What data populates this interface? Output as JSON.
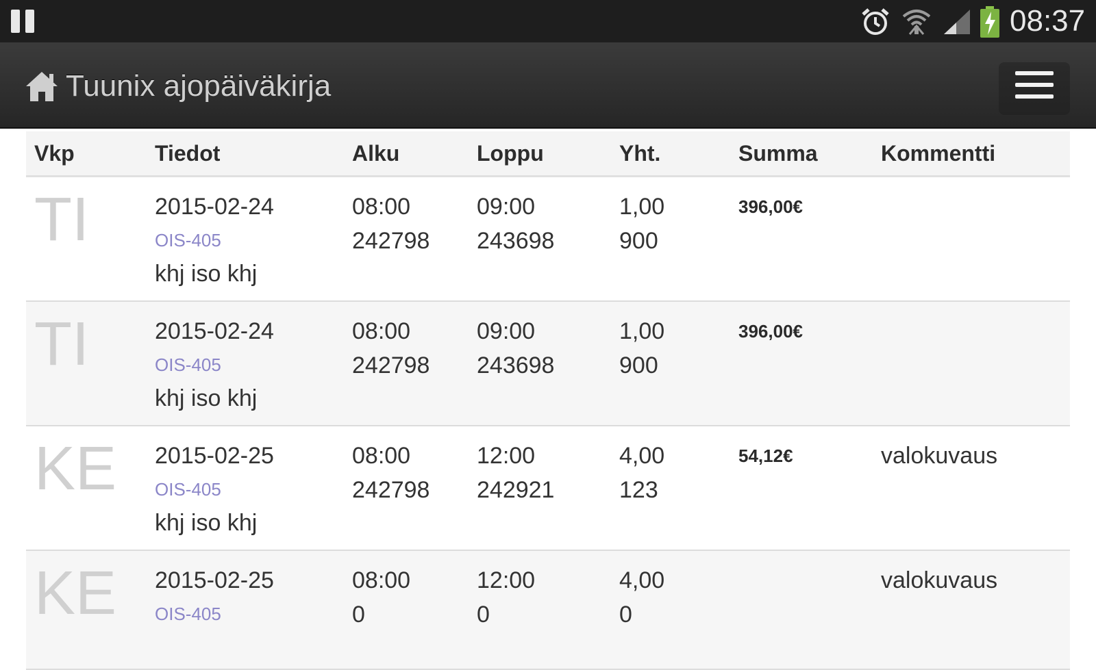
{
  "status_bar": {
    "time": "08:37",
    "icons": [
      "pause-icon",
      "alarm-icon",
      "wifi-icon",
      "signal-icon",
      "battery-charging-icon"
    ]
  },
  "header": {
    "title": "Tuunix ajopäiväkirja",
    "home_icon": "home-icon",
    "menu_icon": "hamburger-menu-icon"
  },
  "table": {
    "columns": [
      "Vkp",
      "Tiedot",
      "Alku",
      "Loppu",
      "Yht.",
      "Summa",
      "Kommentti"
    ],
    "rows": [
      {
        "day": "TI",
        "date": "2015-02-24",
        "plate": "OIS-405",
        "description": "khj iso khj",
        "start_time": "08:00",
        "start_km": "242798",
        "end_time": "09:00",
        "end_km": "243698",
        "total_hours": "1,00",
        "total_km": "900",
        "sum": "396,00€",
        "comment": ""
      },
      {
        "day": "TI",
        "date": "2015-02-24",
        "plate": "OIS-405",
        "description": "khj iso khj",
        "start_time": "08:00",
        "start_km": "242798",
        "end_time": "09:00",
        "end_km": "243698",
        "total_hours": "1,00",
        "total_km": "900",
        "sum": "396,00€",
        "comment": ""
      },
      {
        "day": "KE",
        "date": "2015-02-25",
        "plate": "OIS-405",
        "description": "khj iso khj",
        "start_time": "08:00",
        "start_km": "242798",
        "end_time": "12:00",
        "end_km": "242921",
        "total_hours": "4,00",
        "total_km": "123",
        "sum": "54,12€",
        "comment": "valokuvaus"
      },
      {
        "day": "KE",
        "date": "2015-02-25",
        "plate": "OIS-405",
        "description": "",
        "start_time": "08:00",
        "start_km": "0",
        "end_time": "12:00",
        "end_km": "0",
        "total_hours": "4,00",
        "total_km": "0",
        "sum": "",
        "comment": "valokuvaus"
      }
    ]
  }
}
